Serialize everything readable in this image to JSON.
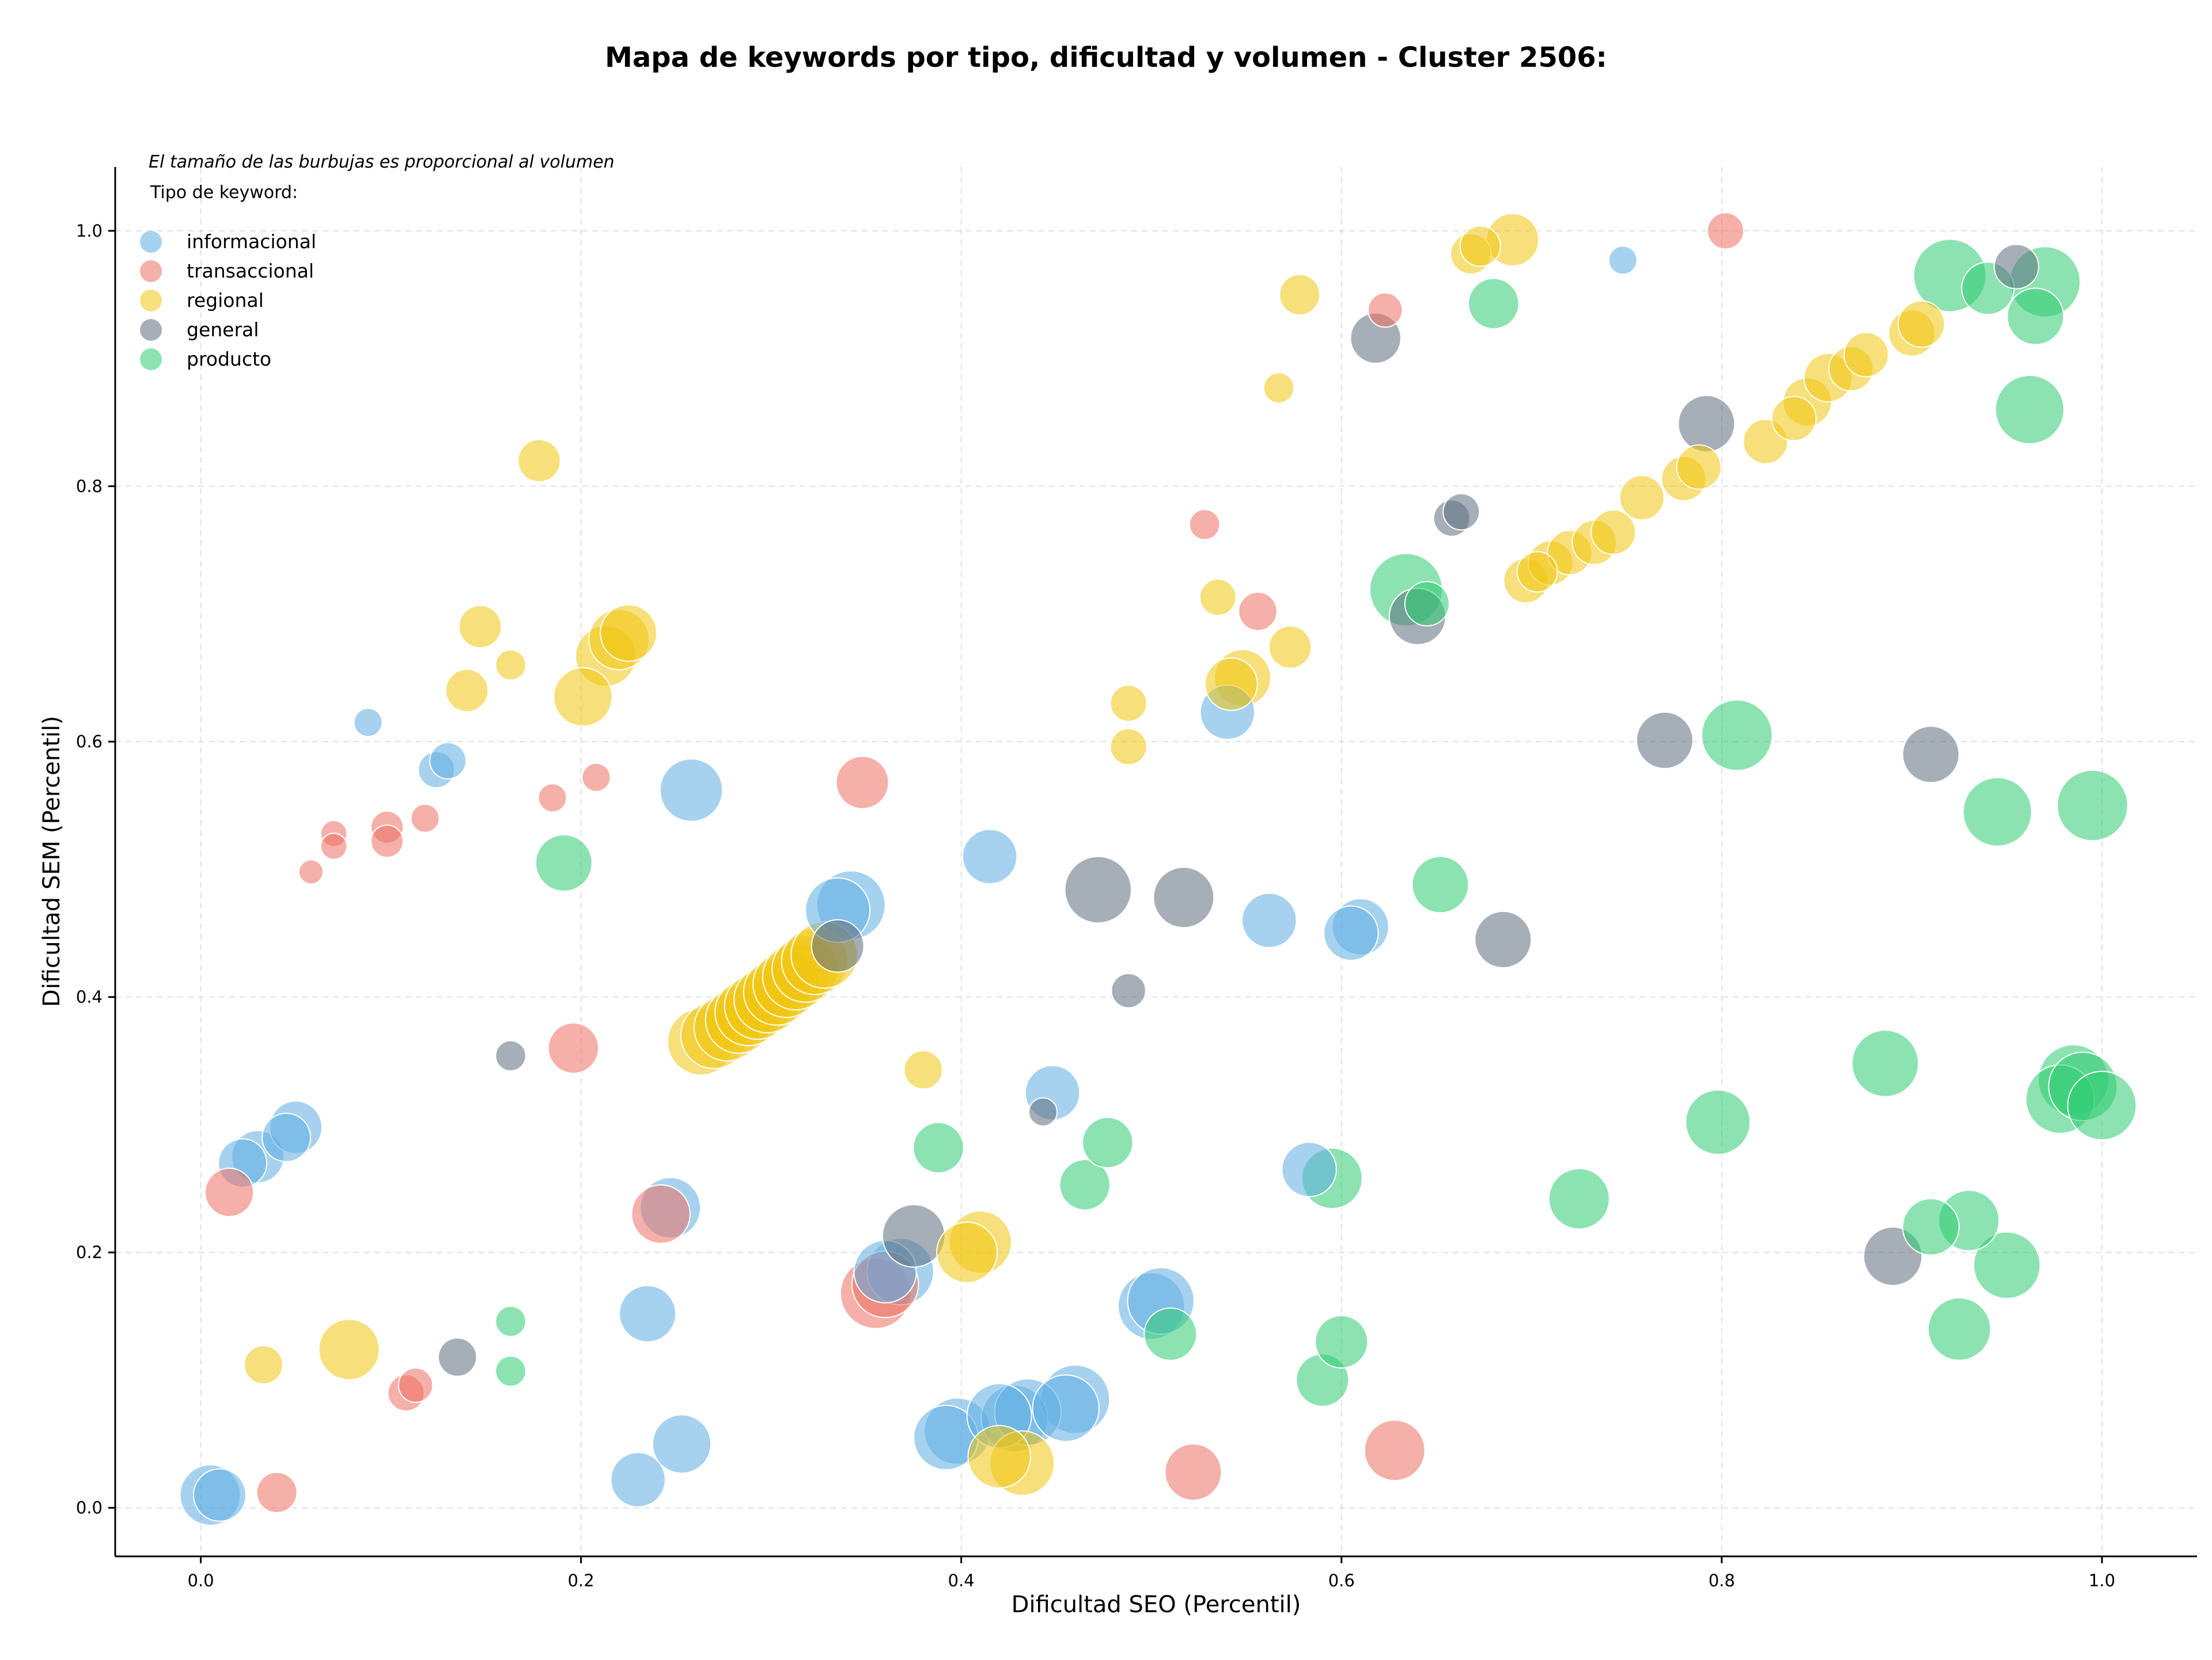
{
  "chart_data": {
    "type": "scatter",
    "title": "Mapa de keywords por tipo, dificultad y volumen - Cluster 2506:",
    "xlabel": "Dificultad SEO (Percentil)",
    "ylabel": "Dificultad SEM (Percentil)",
    "xlim": [
      -0.045,
      1.05
    ],
    "ylim": [
      -0.038,
      1.05
    ],
    "xticks": [
      "0.0",
      "0.2",
      "0.4",
      "0.6",
      "0.8",
      "1.0"
    ],
    "yticks": [
      "0.0",
      "0.2",
      "0.4",
      "0.6",
      "0.8",
      "1.0"
    ],
    "grid": true,
    "size_note": "El tamaño de las burbujas es proporcional al volumen",
    "legend_title": "Tipo de keyword:",
    "legend_position": "top-left",
    "series": [
      {
        "name": "informacional",
        "color": "#5dade2",
        "points": [
          [
            0.005,
            0.01,
            3.0
          ],
          [
            0.01,
            0.01,
            2.6
          ],
          [
            0.022,
            0.27,
            2.4
          ],
          [
            0.03,
            0.275,
            2.6
          ],
          [
            0.045,
            0.29,
            2.4
          ],
          [
            0.05,
            0.298,
            2.6
          ],
          [
            0.088,
            0.615,
            1.4
          ],
          [
            0.124,
            0.578,
            1.8
          ],
          [
            0.13,
            0.585,
            1.8
          ],
          [
            0.23,
            0.022,
            2.7
          ],
          [
            0.235,
            0.152,
            2.8
          ],
          [
            0.247,
            0.235,
            3.0
          ],
          [
            0.253,
            0.05,
            2.9
          ],
          [
            0.258,
            0.562,
            3.1
          ],
          [
            0.335,
            0.468,
            3.2
          ],
          [
            0.342,
            0.472,
            3.4
          ],
          [
            0.36,
            0.185,
            3.1
          ],
          [
            0.368,
            0.185,
            3.3
          ],
          [
            0.392,
            0.055,
            3.2
          ],
          [
            0.398,
            0.06,
            3.3
          ],
          [
            0.415,
            0.51,
            2.7
          ],
          [
            0.42,
            0.072,
            3.2
          ],
          [
            0.428,
            0.07,
            3.3
          ],
          [
            0.435,
            0.075,
            3.3
          ],
          [
            0.448,
            0.325,
            2.7
          ],
          [
            0.455,
            0.078,
            3.3
          ],
          [
            0.46,
            0.085,
            3.4
          ],
          [
            0.5,
            0.158,
            3.3
          ],
          [
            0.505,
            0.162,
            3.3
          ],
          [
            0.54,
            0.623,
            2.7
          ],
          [
            0.562,
            0.46,
            2.7
          ],
          [
            0.583,
            0.265,
            2.7
          ],
          [
            0.605,
            0.45,
            2.7
          ],
          [
            0.61,
            0.455,
            2.8
          ],
          [
            0.748,
            0.977,
            1.4
          ]
        ]
      },
      {
        "name": "transaccional",
        "color": "#ec7063",
        "points": [
          [
            0.015,
            0.247,
            2.4
          ],
          [
            0.04,
            0.012,
            2.0
          ],
          [
            0.058,
            0.498,
            1.2
          ],
          [
            0.07,
            0.528,
            1.3
          ],
          [
            0.07,
            0.518,
            1.3
          ],
          [
            0.098,
            0.533,
            1.6
          ],
          [
            0.098,
            0.522,
            1.6
          ],
          [
            0.108,
            0.09,
            1.8
          ],
          [
            0.113,
            0.096,
            1.7
          ],
          [
            0.118,
            0.54,
            1.4
          ],
          [
            0.185,
            0.556,
            1.4
          ],
          [
            0.196,
            0.36,
            2.5
          ],
          [
            0.208,
            0.572,
            1.4
          ],
          [
            0.242,
            0.23,
            2.9
          ],
          [
            0.348,
            0.568,
            2.6
          ],
          [
            0.355,
            0.168,
            3.5
          ],
          [
            0.36,
            0.175,
            3.3
          ],
          [
            0.522,
            0.028,
            2.8
          ],
          [
            0.528,
            0.77,
            1.5
          ],
          [
            0.556,
            0.702,
            1.9
          ],
          [
            0.623,
            0.938,
            1.7
          ],
          [
            0.628,
            0.045,
            3.0
          ],
          [
            0.802,
            1.0,
            1.8
          ]
        ]
      },
      {
        "name": "regional",
        "color": "#f1c40f",
        "points": [
          [
            0.033,
            0.112,
            1.9
          ],
          [
            0.078,
            0.124,
            3.0
          ],
          [
            0.14,
            0.64,
            2.1
          ],
          [
            0.147,
            0.69,
            2.1
          ],
          [
            0.163,
            0.66,
            1.5
          ],
          [
            0.178,
            0.82,
            2.1
          ],
          [
            0.201,
            0.635,
            2.9
          ],
          [
            0.213,
            0.667,
            3.0
          ],
          [
            0.22,
            0.68,
            3.0
          ],
          [
            0.225,
            0.685,
            2.8
          ],
          [
            0.263,
            0.365,
            3.3
          ],
          [
            0.27,
            0.37,
            3.3
          ],
          [
            0.277,
            0.376,
            3.3
          ],
          [
            0.283,
            0.382,
            3.3
          ],
          [
            0.288,
            0.388,
            3.3
          ],
          [
            0.293,
            0.393,
            3.3
          ],
          [
            0.298,
            0.398,
            3.3
          ],
          [
            0.303,
            0.404,
            3.3
          ],
          [
            0.308,
            0.41,
            3.3
          ],
          [
            0.313,
            0.416,
            3.3
          ],
          [
            0.318,
            0.422,
            3.3
          ],
          [
            0.323,
            0.428,
            3.3
          ],
          [
            0.328,
            0.433,
            3.3
          ],
          [
            0.38,
            0.343,
            1.9
          ],
          [
            0.403,
            0.2,
            3.0
          ],
          [
            0.41,
            0.208,
            3.1
          ],
          [
            0.42,
            0.04,
            3.1
          ],
          [
            0.432,
            0.035,
            3.2
          ],
          [
            0.488,
            0.63,
            1.8
          ],
          [
            0.488,
            0.596,
            1.8
          ],
          [
            0.535,
            0.713,
            1.8
          ],
          [
            0.542,
            0.645,
            2.6
          ],
          [
            0.548,
            0.65,
            2.8
          ],
          [
            0.567,
            0.877,
            1.5
          ],
          [
            0.573,
            0.674,
            2.1
          ],
          [
            0.578,
            0.95,
            2.0
          ],
          [
            0.668,
            0.982,
            2.0
          ],
          [
            0.673,
            0.988,
            2.0
          ],
          [
            0.69,
            0.993,
            2.6
          ],
          [
            0.697,
            0.726,
            2.2
          ],
          [
            0.703,
            0.733,
            2.0
          ],
          [
            0.71,
            0.74,
            2.2
          ],
          [
            0.72,
            0.748,
            2.2
          ],
          [
            0.733,
            0.756,
            2.2
          ],
          [
            0.743,
            0.764,
            2.2
          ],
          [
            0.758,
            0.791,
            2.2
          ],
          [
            0.78,
            0.806,
            2.2
          ],
          [
            0.788,
            0.815,
            2.2
          ],
          [
            0.823,
            0.835,
            2.2
          ],
          [
            0.838,
            0.853,
            2.2
          ],
          [
            0.845,
            0.866,
            2.4
          ],
          [
            0.856,
            0.885,
            2.4
          ],
          [
            0.868,
            0.892,
            2.2
          ],
          [
            0.876,
            0.903,
            2.2
          ],
          [
            0.9,
            0.92,
            2.3
          ],
          [
            0.905,
            0.927,
            2.3
          ]
        ]
      },
      {
        "name": "general",
        "color": "#5d6d7e",
        "points": [
          [
            0.135,
            0.118,
            1.9
          ],
          [
            0.163,
            0.354,
            1.5
          ],
          [
            0.335,
            0.44,
            2.6
          ],
          [
            0.375,
            0.213,
            3.1
          ],
          [
            0.443,
            0.31,
            1.4
          ],
          [
            0.472,
            0.484,
            3.3
          ],
          [
            0.488,
            0.405,
            1.7
          ],
          [
            0.517,
            0.478,
            3.0
          ],
          [
            0.618,
            0.916,
            2.5
          ],
          [
            0.64,
            0.698,
            2.8
          ],
          [
            0.658,
            0.775,
            1.8
          ],
          [
            0.663,
            0.78,
            1.8
          ],
          [
            0.685,
            0.445,
            2.8
          ],
          [
            0.77,
            0.601,
            2.8
          ],
          [
            0.792,
            0.849,
            2.8
          ],
          [
            0.89,
            0.197,
            2.9
          ],
          [
            0.91,
            0.59,
            2.8
          ],
          [
            0.955,
            0.972,
            2.2
          ]
        ]
      },
      {
        "name": "producto",
        "color": "#2ecc71",
        "points": [
          [
            0.163,
            0.146,
            1.5
          ],
          [
            0.163,
            0.107,
            1.5
          ],
          [
            0.191,
            0.505,
            2.8
          ],
          [
            0.388,
            0.282,
            2.5
          ],
          [
            0.465,
            0.253,
            2.5
          ],
          [
            0.477,
            0.286,
            2.5
          ],
          [
            0.51,
            0.136,
            2.6
          ],
          [
            0.59,
            0.1,
            2.6
          ],
          [
            0.595,
            0.258,
            3.0
          ],
          [
            0.6,
            0.13,
            2.6
          ],
          [
            0.634,
            0.719,
            3.6
          ],
          [
            0.645,
            0.708,
            2.2
          ],
          [
            0.68,
            0.943,
            2.5
          ],
          [
            0.652,
            0.488,
            2.8
          ],
          [
            0.725,
            0.242,
            3.0
          ],
          [
            0.798,
            0.302,
            3.2
          ],
          [
            0.808,
            0.605,
            3.5
          ],
          [
            0.886,
            0.348,
            3.3
          ],
          [
            0.91,
            0.22,
            2.8
          ],
          [
            0.92,
            0.965,
            3.6
          ],
          [
            0.925,
            0.14,
            3.1
          ],
          [
            0.93,
            0.225,
            3.0
          ],
          [
            0.94,
            0.955,
            2.6
          ],
          [
            0.945,
            0.545,
            3.4
          ],
          [
            0.95,
            0.19,
            3.3
          ],
          [
            0.962,
            0.86,
            3.4
          ],
          [
            0.965,
            0.933,
            2.8
          ],
          [
            0.97,
            0.96,
            3.5
          ],
          [
            0.978,
            0.32,
            3.4
          ],
          [
            0.985,
            0.335,
            3.5
          ],
          [
            0.99,
            0.33,
            3.4
          ],
          [
            0.995,
            0.55,
            3.5
          ],
          [
            1.0,
            0.315,
            3.4
          ]
        ]
      }
    ]
  }
}
